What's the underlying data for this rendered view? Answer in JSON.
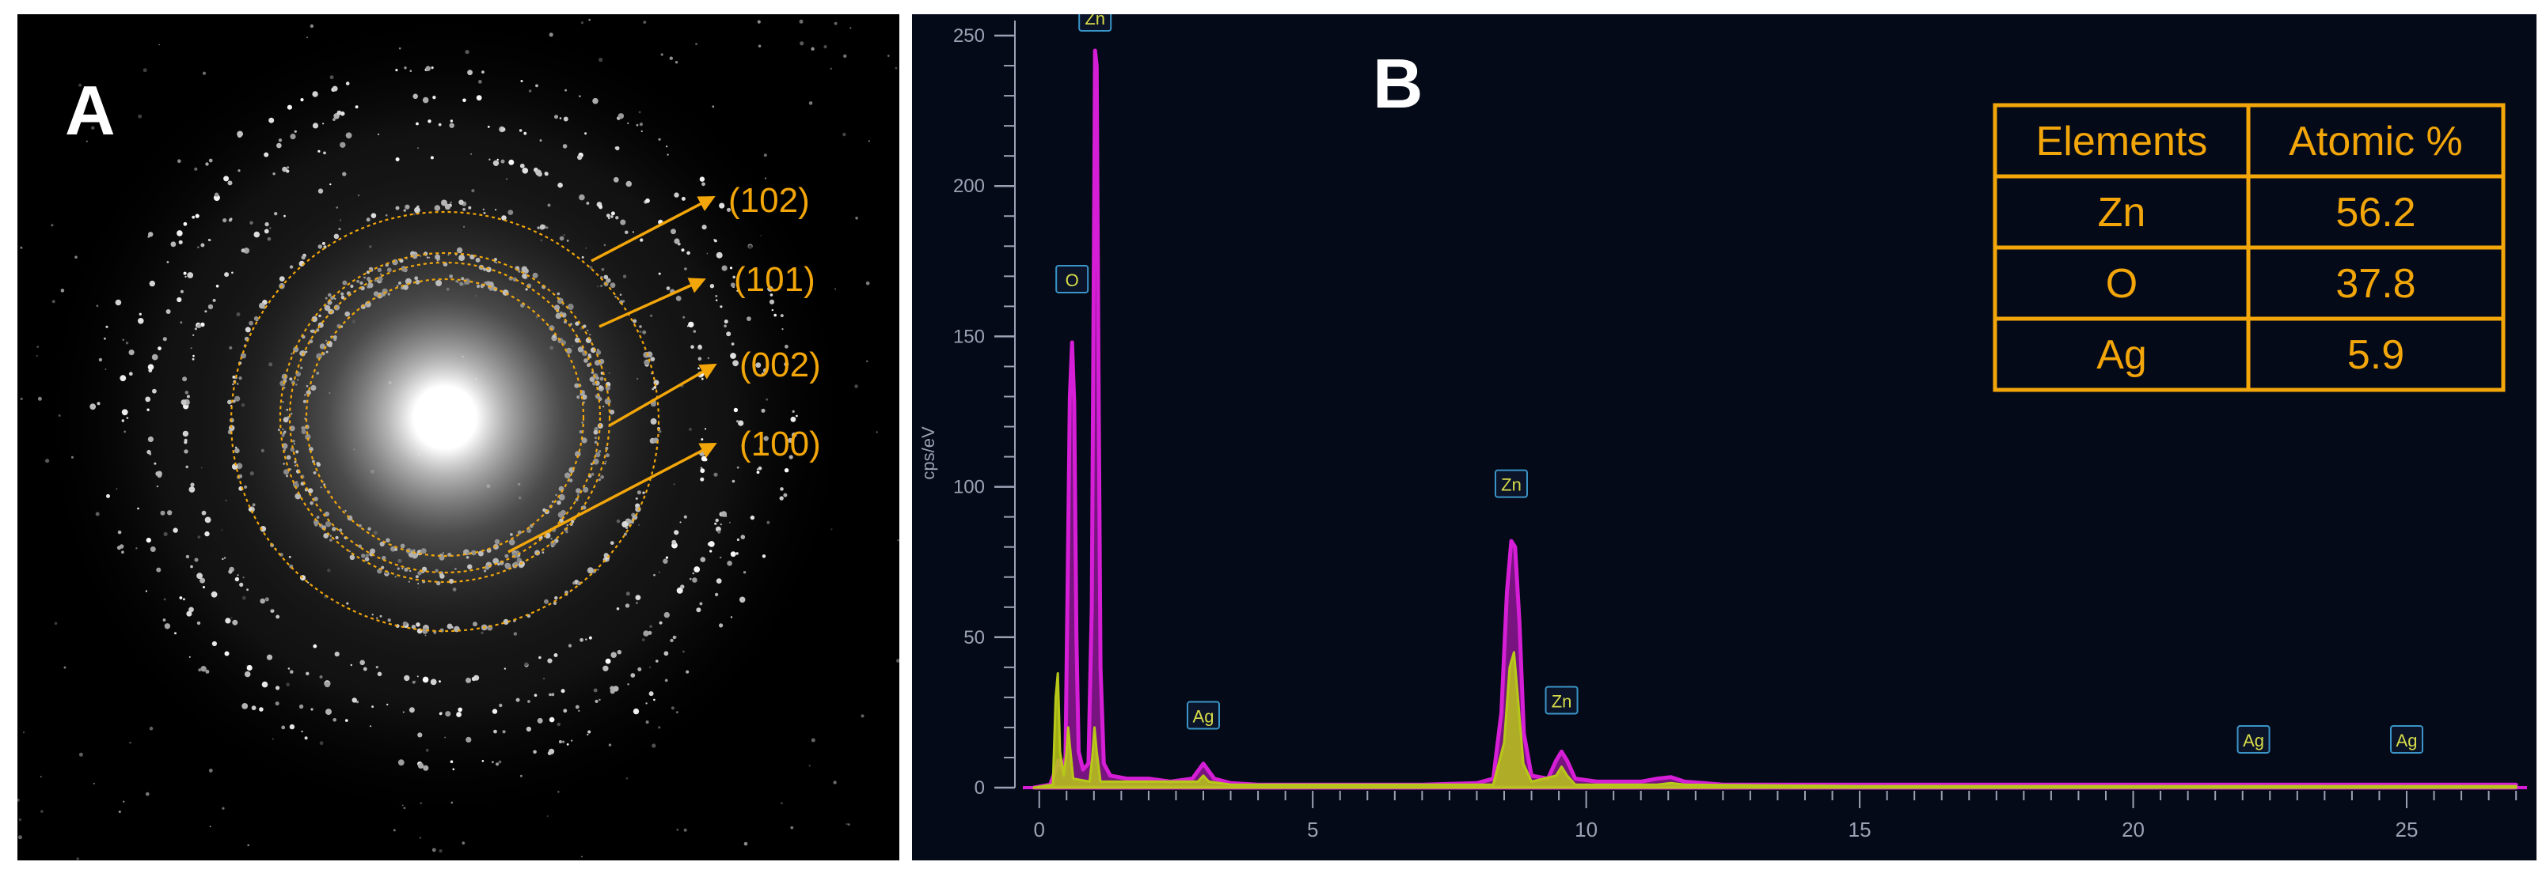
{
  "panels": {
    "a": {
      "label": "A"
    },
    "b": {
      "label": "B"
    }
  },
  "saed": {
    "ring_labels": [
      "(102)",
      "(101)",
      "(002)",
      "(100)"
    ],
    "colors": {
      "annotation": "#f2a60a",
      "background": "#000000"
    }
  },
  "chart_data": {
    "type": "line",
    "title": "",
    "xlabel": "",
    "ylabel": "cps/eV",
    "xlim": [
      -0.3,
      27.2
    ],
    "ylim": [
      0,
      255
    ],
    "x_ticks": [
      0,
      5,
      10,
      15,
      20,
      25
    ],
    "y_ticks": [
      0,
      50,
      100,
      150,
      200,
      250
    ],
    "series": [
      {
        "color": "#d61ed6",
        "points": [
          [
            -0.1,
            0
          ],
          [
            0.2,
            1
          ],
          [
            0.3,
            6
          ],
          [
            0.35,
            9
          ],
          [
            0.42,
            6
          ],
          [
            0.48,
            10
          ],
          [
            0.52,
            70
          ],
          [
            0.56,
            130
          ],
          [
            0.6,
            148
          ],
          [
            0.64,
            128
          ],
          [
            0.68,
            50
          ],
          [
            0.72,
            12
          ],
          [
            0.8,
            6
          ],
          [
            0.9,
            8
          ],
          [
            0.96,
            60
          ],
          [
            1.0,
            180
          ],
          [
            1.02,
            245
          ],
          [
            1.05,
            240
          ],
          [
            1.08,
            150
          ],
          [
            1.12,
            40
          ],
          [
            1.18,
            8
          ],
          [
            1.3,
            4
          ],
          [
            1.6,
            3
          ],
          [
            2.0,
            3
          ],
          [
            2.4,
            2
          ],
          [
            2.8,
            3
          ],
          [
            2.92,
            6
          ],
          [
            3.0,
            8
          ],
          [
            3.08,
            6
          ],
          [
            3.2,
            3
          ],
          [
            3.5,
            1.5
          ],
          [
            4.0,
            1
          ],
          [
            5.0,
            1
          ],
          [
            6.0,
            1
          ],
          [
            7.0,
            1
          ],
          [
            8.0,
            1.5
          ],
          [
            8.3,
            3
          ],
          [
            8.45,
            25
          ],
          [
            8.55,
            65
          ],
          [
            8.63,
            82
          ],
          [
            8.7,
            80
          ],
          [
            8.78,
            55
          ],
          [
            8.86,
            18
          ],
          [
            9.0,
            4
          ],
          [
            9.3,
            3
          ],
          [
            9.45,
            9
          ],
          [
            9.55,
            12
          ],
          [
            9.65,
            9
          ],
          [
            9.8,
            3
          ],
          [
            10.2,
            2
          ],
          [
            11.0,
            2
          ],
          [
            11.3,
            3
          ],
          [
            11.55,
            3.5
          ],
          [
            11.8,
            2
          ],
          [
            12.5,
            1
          ],
          [
            15,
            1
          ],
          [
            20,
            1
          ],
          [
            22.2,
            1
          ],
          [
            25,
            1
          ],
          [
            27,
            1
          ]
        ]
      },
      {
        "color": "#b8c818",
        "points": [
          [
            -0.1,
            0
          ],
          [
            0.25,
            1
          ],
          [
            0.3,
            30
          ],
          [
            0.34,
            38
          ],
          [
            0.38,
            12
          ],
          [
            0.45,
            4
          ],
          [
            0.5,
            12
          ],
          [
            0.53,
            20
          ],
          [
            0.56,
            14
          ],
          [
            0.62,
            3
          ],
          [
            0.92,
            2
          ],
          [
            0.97,
            10
          ],
          [
            1.01,
            20
          ],
          [
            1.05,
            12
          ],
          [
            1.12,
            2
          ],
          [
            1.5,
            2
          ],
          [
            2.0,
            2
          ],
          [
            2.9,
            2
          ],
          [
            3.0,
            4
          ],
          [
            3.1,
            2
          ],
          [
            3.5,
            1
          ],
          [
            5,
            1
          ],
          [
            8.3,
            1
          ],
          [
            8.5,
            15
          ],
          [
            8.6,
            40
          ],
          [
            8.68,
            45
          ],
          [
            8.75,
            30
          ],
          [
            8.85,
            8
          ],
          [
            9.0,
            2
          ],
          [
            9.45,
            4
          ],
          [
            9.55,
            7
          ],
          [
            9.65,
            4
          ],
          [
            9.8,
            1
          ],
          [
            11.3,
            1
          ],
          [
            11.55,
            1.5
          ],
          [
            11.8,
            1
          ],
          [
            15,
            0.5
          ],
          [
            27,
            0.5
          ]
        ]
      }
    ],
    "peak_labels": [
      {
        "text": "Zn",
        "x": 1.02,
        "y": 250
      },
      {
        "text": "O",
        "x": 0.6,
        "y": 163
      },
      {
        "text": "Ag",
        "x": 3.0,
        "y": 18
      },
      {
        "text": "Zn",
        "x": 8.63,
        "y": 95
      },
      {
        "text": "Zn",
        "x": 9.55,
        "y": 23
      },
      {
        "text": "Ag",
        "x": 22.2,
        "y": 10
      },
      {
        "text": "Ag",
        "x": 25.0,
        "y": 10
      }
    ],
    "table": {
      "headers": [
        "Elements",
        "Atomic %"
      ],
      "rows": [
        [
          "Zn",
          "56.2"
        ],
        [
          "O",
          "37.8"
        ],
        [
          "Ag",
          "5.9"
        ]
      ]
    },
    "colors": {
      "background": "#050a18",
      "axis": "#9aa2b4",
      "accent": "#f2a60a",
      "label_box": "#3a95c8"
    }
  }
}
